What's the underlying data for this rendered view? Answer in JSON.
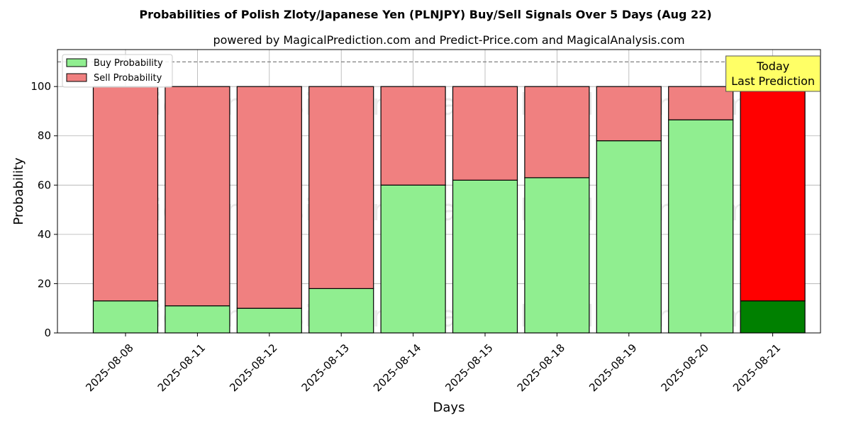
{
  "chart_data": {
    "type": "bar",
    "stacked": true,
    "title": "Probabilities of Polish Zloty/Japanese Yen (PLNJPY) Buy/Sell Signals Over 5 Days (Aug 22)",
    "subtitle": "powered by MagicalPrediction.com and Predict-Price.com and MagicalAnalysis.com",
    "xlabel": "Days",
    "ylabel": "Probability",
    "ylim": [
      0,
      115
    ],
    "yticks": [
      0,
      20,
      40,
      60,
      80,
      100
    ],
    "categories": [
      "2025-08-08",
      "2025-08-11",
      "2025-08-12",
      "2025-08-13",
      "2025-08-14",
      "2025-08-15",
      "2025-08-18",
      "2025-08-19",
      "2025-08-20",
      "2025-08-21"
    ],
    "series": [
      {
        "name": "Buy Probability",
        "values": [
          13,
          11,
          10,
          18,
          60,
          62,
          63,
          78,
          86.5,
          13
        ],
        "color": "#90ee90",
        "highlight_color": "#008000"
      },
      {
        "name": "Sell Probability",
        "values": [
          87,
          89,
          90,
          82,
          40,
          38,
          37,
          22,
          13.5,
          87
        ],
        "color": "#f08080",
        "highlight_color": "#ff0000"
      }
    ],
    "highlight_index": 9,
    "reference_line": 110,
    "grid": true,
    "legend_position": "top-left",
    "annotation": {
      "lines": [
        "Today",
        "Last Prediction"
      ],
      "background": "#ffff66"
    },
    "watermarks": [
      "MagicalAnalysis.com",
      "MagicalPrediction.com"
    ]
  }
}
